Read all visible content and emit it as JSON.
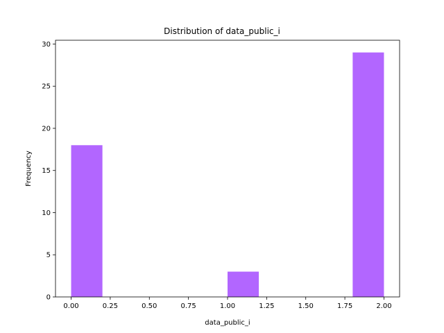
{
  "chart_data": {
    "type": "bar",
    "title": "Distribution of  data_public_i",
    "xlabel": "data_public_i",
    "ylabel": "Frequency",
    "bar_color": "#b266ff",
    "bins": [
      {
        "x0": 0.0,
        "x1": 0.2,
        "count": 18
      },
      {
        "x0": 0.2,
        "x1": 0.4,
        "count": 0
      },
      {
        "x0": 0.4,
        "x1": 0.6,
        "count": 0
      },
      {
        "x0": 0.6,
        "x1": 0.8,
        "count": 0
      },
      {
        "x0": 0.8,
        "x1": 1.0,
        "count": 0
      },
      {
        "x0": 1.0,
        "x1": 1.2,
        "count": 3
      },
      {
        "x0": 1.2,
        "x1": 1.4,
        "count": 0
      },
      {
        "x0": 1.4,
        "x1": 1.6,
        "count": 0
      },
      {
        "x0": 1.6,
        "x1": 1.8,
        "count": 0
      },
      {
        "x0": 1.8,
        "x1": 2.0,
        "count": 29
      }
    ],
    "xlim": [
      -0.1,
      2.1
    ],
    "ylim": [
      0,
      30.45
    ],
    "xticks": [
      0.0,
      0.25,
      0.5,
      0.75,
      1.0,
      1.25,
      1.5,
      1.75,
      2.0
    ],
    "xtick_labels": [
      "0.00",
      "0.25",
      "0.50",
      "0.75",
      "1.00",
      "1.25",
      "1.50",
      "1.75",
      "2.00"
    ],
    "yticks": [
      0,
      5,
      10,
      15,
      20,
      25,
      30
    ],
    "ytick_labels": [
      "0",
      "5",
      "10",
      "15",
      "20",
      "25",
      "30"
    ],
    "grid": false,
    "legend": "none"
  }
}
